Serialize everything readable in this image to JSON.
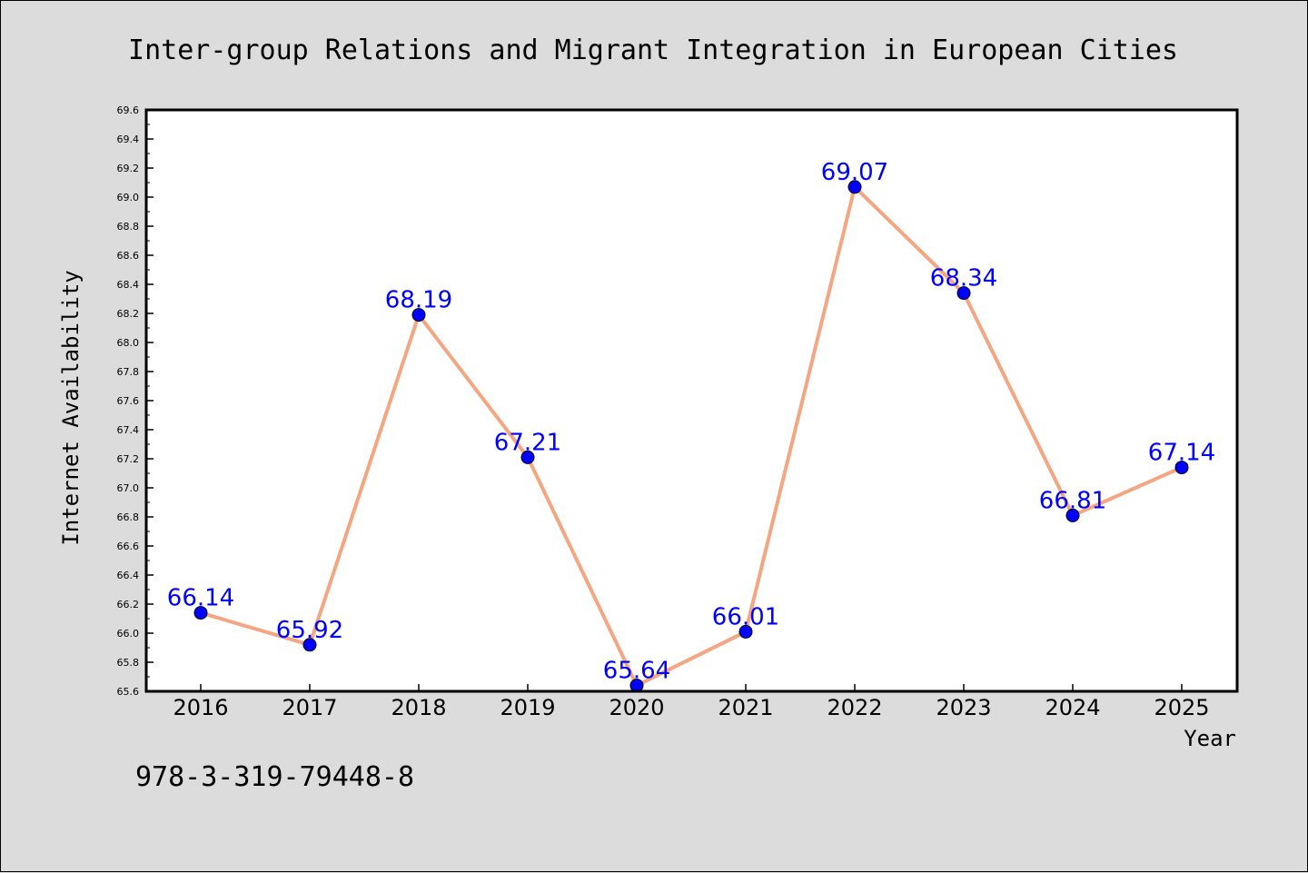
{
  "chart_data": {
    "type": "line",
    "title": "Inter-group Relations and Migrant Integration in European Cities",
    "xlabel": "Year",
    "ylabel": "Internet Availability",
    "categories": [
      "2016",
      "2017",
      "2018",
      "2019",
      "2020",
      "2021",
      "2022",
      "2023",
      "2024",
      "2025"
    ],
    "series": [
      {
        "values": [
          66.14,
          65.92,
          68.19,
          67.21,
          65.64,
          66.01,
          69.07,
          68.34,
          66.81,
          67.14
        ],
        "labels": [
          "66.14",
          "65.92",
          "68.19",
          "67.21",
          "65.64",
          "66.01",
          "69.07",
          "68.34",
          "66.81",
          "67.14"
        ]
      }
    ],
    "ylim": [
      65.6,
      69.6
    ],
    "yticks": [
      "65.6",
      "65.8",
      "66.0",
      "66.2",
      "66.4",
      "66.6",
      "66.8",
      "67.0",
      "67.2",
      "67.4",
      "67.6",
      "67.8",
      "68.0",
      "68.2",
      "68.4",
      "68.6",
      "68.8",
      "69.0",
      "69.2",
      "69.4",
      "69.6"
    ],
    "grid": false,
    "legend": "none",
    "colors": {
      "line": "#f4a582",
      "marker": "#0000ff",
      "label": "#0000ff",
      "plot_bg": "#ffffff",
      "page_bg": "#dcdcdc"
    }
  },
  "footer": {
    "note": "978-3-319-79448-8"
  }
}
